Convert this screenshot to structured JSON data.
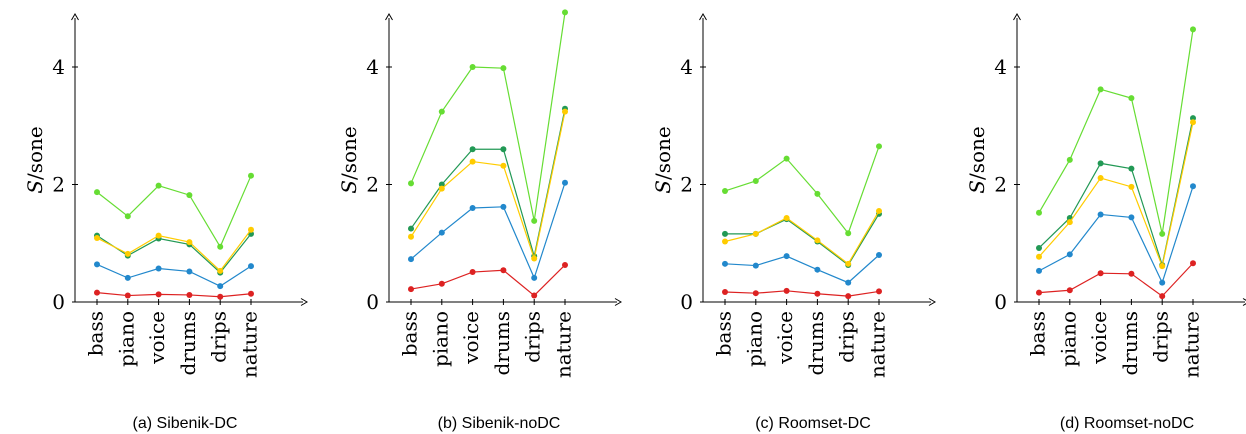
{
  "chart_data": [
    {
      "type": "line",
      "caption": "(a) Sibenik-DC",
      "ylabel_var": "S",
      "ylabel_unit": "/sone",
      "categories": [
        "bass",
        "piano",
        "voice",
        "drums",
        "drips",
        "nature"
      ],
      "yticks": [
        "0",
        "2",
        "4"
      ],
      "ylim": [
        0,
        5
      ],
      "series": [
        {
          "color": "#66dd33",
          "values": [
            1.87,
            1.46,
            1.98,
            1.82,
            0.94,
            2.15
          ]
        },
        {
          "color": "#229955",
          "values": [
            1.13,
            0.79,
            1.08,
            0.98,
            0.5,
            1.16
          ]
        },
        {
          "color": "#ffcc00",
          "values": [
            1.09,
            0.82,
            1.13,
            1.02,
            0.53,
            1.23
          ]
        },
        {
          "color": "#2288cc",
          "values": [
            0.64,
            0.41,
            0.57,
            0.52,
            0.27,
            0.61
          ]
        },
        {
          "color": "#dd2222",
          "values": [
            0.16,
            0.11,
            0.13,
            0.12,
            0.09,
            0.14
          ]
        }
      ]
    },
    {
      "type": "line",
      "caption": "(b) Sibenik-noDC",
      "ylabel_var": "S",
      "ylabel_unit": "/sone",
      "categories": [
        "bass",
        "piano",
        "voice",
        "drums",
        "drips",
        "nature"
      ],
      "yticks": [
        "0",
        "2",
        "4"
      ],
      "ylim": [
        0,
        5
      ],
      "series": [
        {
          "color": "#66dd33",
          "values": [
            2.02,
            3.24,
            4.0,
            3.98,
            1.38,
            4.93
          ]
        },
        {
          "color": "#229955",
          "values": [
            1.25,
            2.0,
            2.6,
            2.6,
            0.78,
            3.29
          ]
        },
        {
          "color": "#ffcc00",
          "values": [
            1.11,
            1.93,
            2.39,
            2.32,
            0.74,
            3.24
          ]
        },
        {
          "color": "#2288cc",
          "values": [
            0.73,
            1.18,
            1.6,
            1.62,
            0.41,
            2.03
          ]
        },
        {
          "color": "#dd2222",
          "values": [
            0.22,
            0.31,
            0.51,
            0.54,
            0.11,
            0.63
          ]
        }
      ]
    },
    {
      "type": "line",
      "caption": "(c) Roomset-DC",
      "ylabel_var": "S",
      "ylabel_unit": "/sone",
      "categories": [
        "bass",
        "piano",
        "voice",
        "drums",
        "drips",
        "nature"
      ],
      "yticks": [
        "0",
        "2",
        "4"
      ],
      "ylim": [
        0,
        5
      ],
      "series": [
        {
          "color": "#66dd33",
          "values": [
            1.89,
            2.06,
            2.44,
            1.84,
            1.17,
            2.65
          ]
        },
        {
          "color": "#229955",
          "values": [
            1.16,
            1.16,
            1.41,
            1.03,
            0.63,
            1.5
          ]
        },
        {
          "color": "#ffcc00",
          "values": [
            1.03,
            1.16,
            1.43,
            1.05,
            0.65,
            1.55
          ]
        },
        {
          "color": "#2288cc",
          "values": [
            0.65,
            0.62,
            0.78,
            0.55,
            0.33,
            0.8
          ]
        },
        {
          "color": "#dd2222",
          "values": [
            0.17,
            0.15,
            0.19,
            0.14,
            0.1,
            0.18
          ]
        }
      ]
    },
    {
      "type": "line",
      "caption": "(d) Roomset-noDC",
      "ylabel_var": "S",
      "ylabel_unit": "/sone",
      "categories": [
        "bass",
        "piano",
        "voice",
        "drums",
        "drips",
        "nature"
      ],
      "yticks": [
        "0",
        "2",
        "4"
      ],
      "ylim": [
        0,
        5
      ],
      "series": [
        {
          "color": "#66dd33",
          "values": [
            1.52,
            2.42,
            3.62,
            3.47,
            1.16,
            4.64
          ]
        },
        {
          "color": "#229955",
          "values": [
            0.92,
            1.43,
            2.36,
            2.27,
            0.63,
            3.13
          ]
        },
        {
          "color": "#ffcc00",
          "values": [
            0.77,
            1.36,
            2.11,
            1.96,
            0.61,
            3.06
          ]
        },
        {
          "color": "#2288cc",
          "values": [
            0.53,
            0.81,
            1.49,
            1.44,
            0.33,
            1.97
          ]
        },
        {
          "color": "#dd2222",
          "values": [
            0.16,
            0.2,
            0.49,
            0.48,
            0.1,
            0.66
          ]
        }
      ]
    }
  ]
}
